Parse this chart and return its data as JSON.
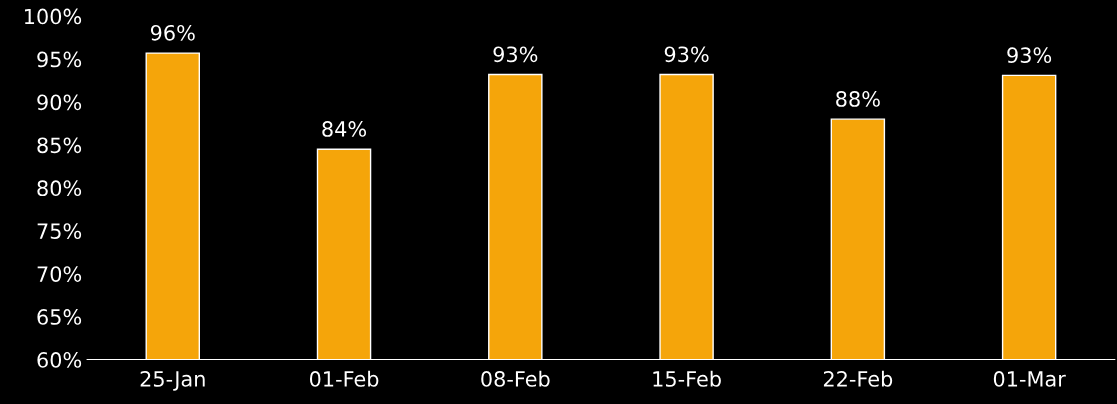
{
  "chart_data": {
    "type": "bar",
    "categories": [
      "25-Jan",
      "01-Feb",
      "08-Feb",
      "15-Feb",
      "22-Feb",
      "01-Mar"
    ],
    "values": [
      95.7,
      84.5,
      93.2,
      93.2,
      88.0,
      93.1
    ],
    "value_labels": [
      "96%",
      "84%",
      "93%",
      "93%",
      "88%",
      "93%"
    ],
    "color": "#f5a50a",
    "ylim": [
      60,
      100
    ],
    "yticks": [
      {
        "value": 60,
        "label": "60%"
      },
      {
        "value": 65,
        "label": "65%"
      },
      {
        "value": 70,
        "label": "70%"
      },
      {
        "value": 75,
        "label": "75%"
      },
      {
        "value": 80,
        "label": "80%"
      },
      {
        "value": 85,
        "label": "85%"
      },
      {
        "value": 90,
        "label": "90%"
      },
      {
        "value": 95,
        "label": "95%"
      },
      {
        "value": 100,
        "label": "100%"
      }
    ],
    "grid": false
  }
}
